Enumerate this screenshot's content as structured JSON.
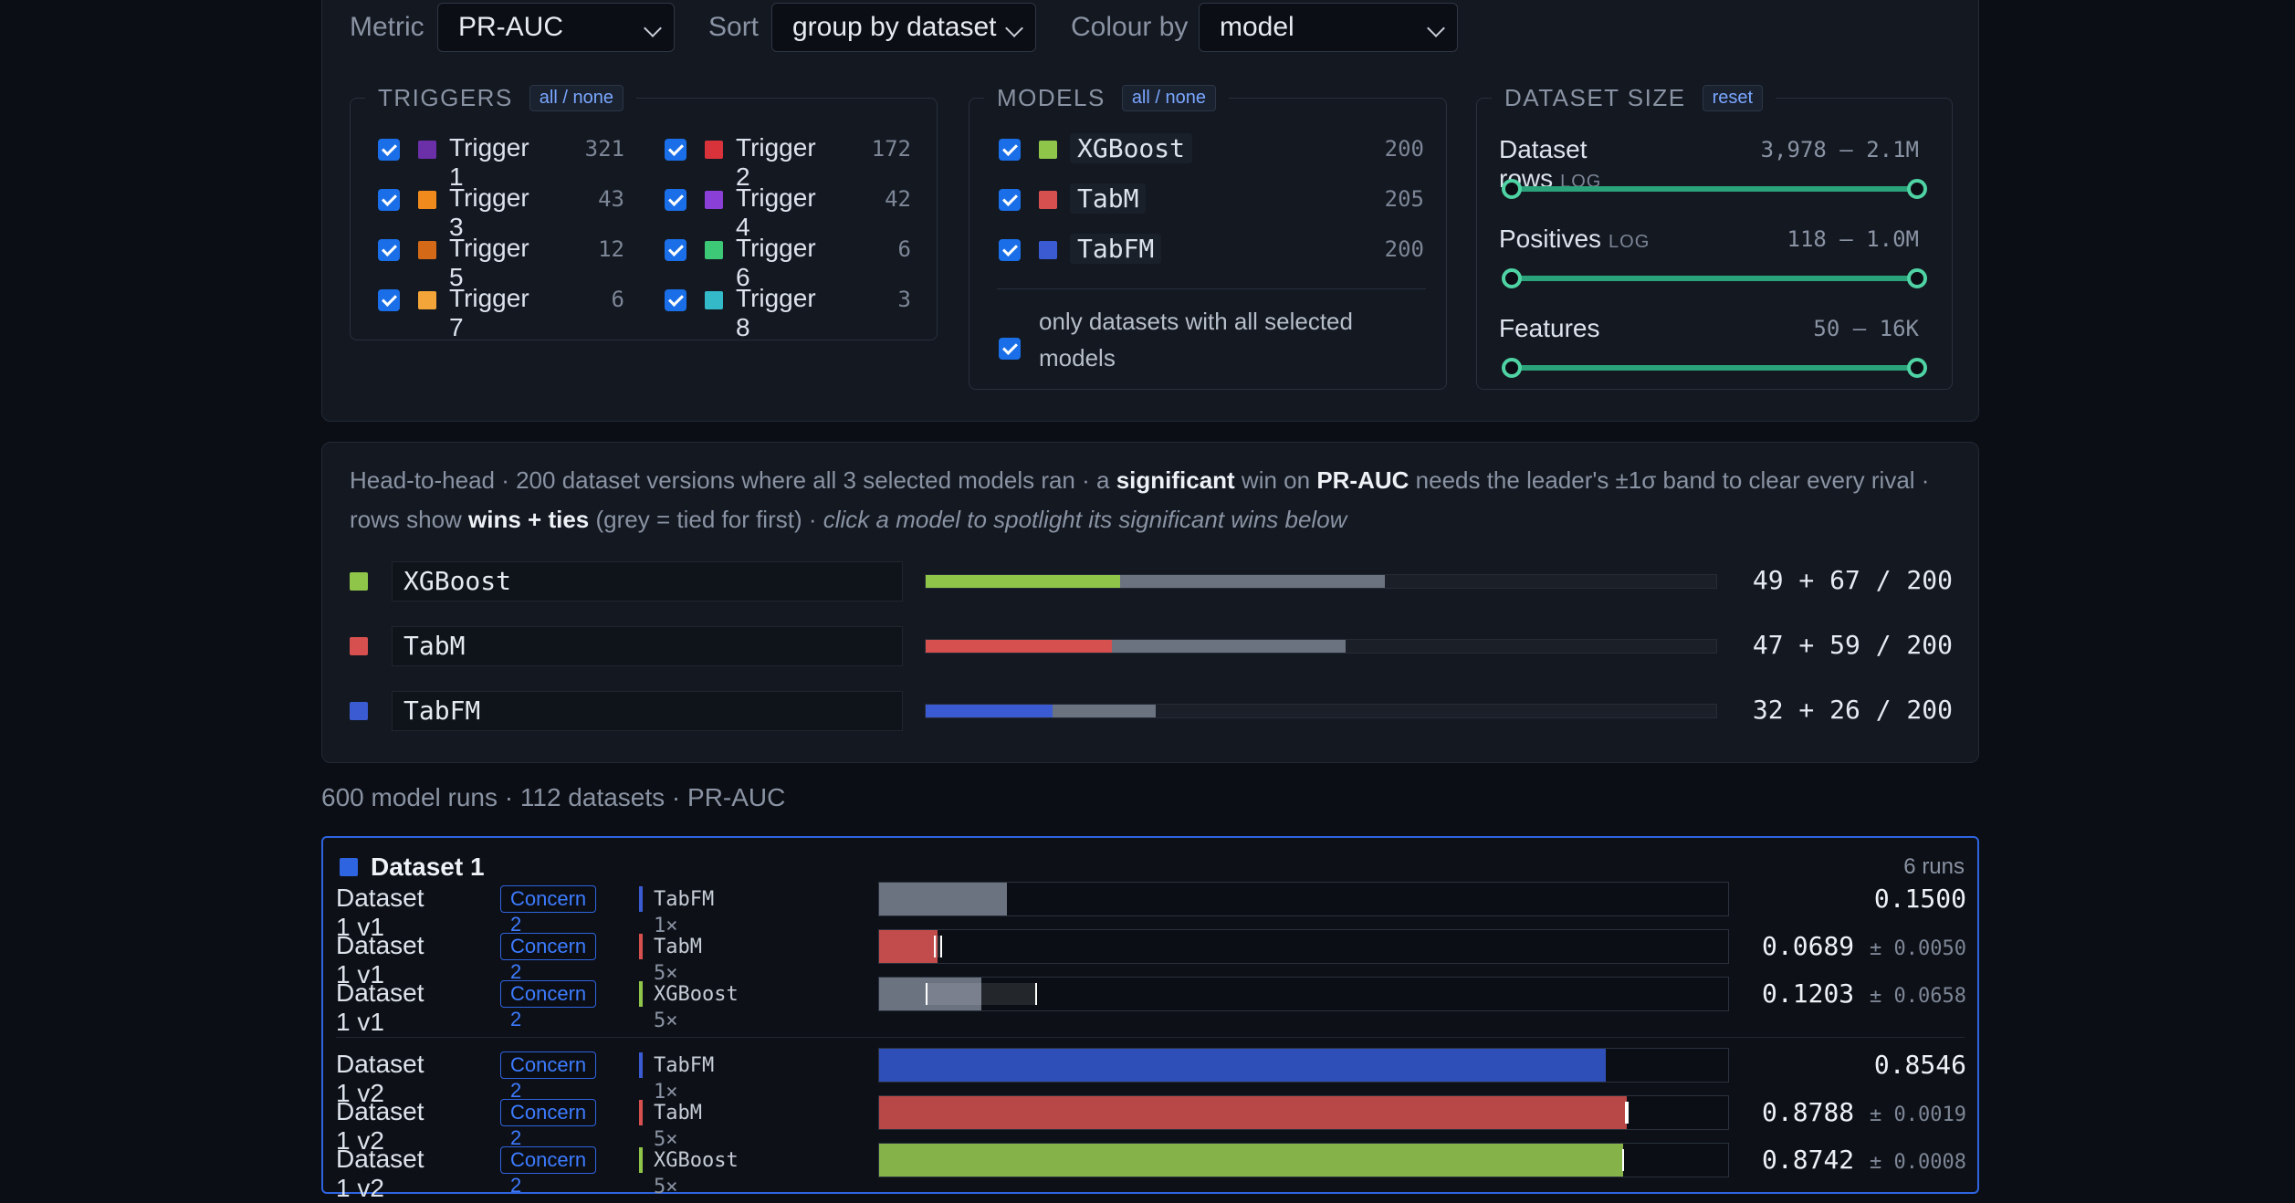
{
  "controls": {
    "metric_label": "Metric",
    "metric_value": "PR-AUC",
    "sort_label": "Sort",
    "sort_value": "group by dataset",
    "colour_label": "Colour by",
    "colour_value": "model"
  },
  "triggers": {
    "title": "TRIGGERS",
    "toggle": "all / none",
    "items": [
      {
        "name": "Trigger 1",
        "count": "321",
        "color": "#6b2fa8"
      },
      {
        "name": "Trigger 2",
        "count": "172",
        "color": "#d8333a"
      },
      {
        "name": "Trigger 3",
        "count": "43",
        "color": "#f08a1c"
      },
      {
        "name": "Trigger 4",
        "count": "42",
        "color": "#8a3fd6"
      },
      {
        "name": "Trigger 5",
        "count": "12",
        "color": "#d46a17"
      },
      {
        "name": "Trigger 6",
        "count": "6",
        "color": "#3dc878"
      },
      {
        "name": "Trigger 7",
        "count": "6",
        "color": "#f4a53a"
      },
      {
        "name": "Trigger 8",
        "count": "3",
        "color": "#34b9c9"
      }
    ]
  },
  "models": {
    "title": "MODELS",
    "toggle": "all / none",
    "items": [
      {
        "name": "XGBoost",
        "count": "200",
        "color": "#8fc64a"
      },
      {
        "name": "TabM",
        "count": "205",
        "color": "#d6504f"
      },
      {
        "name": "TabFM",
        "count": "200",
        "color": "#3a5bd1"
      }
    ],
    "only_all_label": "only datasets with all selected models"
  },
  "dataset_size": {
    "title": "DATASET SIZE",
    "reset": "reset",
    "sliders": [
      {
        "label": "Dataset rows",
        "log": "LOG",
        "range": "3,978 – 2.1M",
        "low": 0,
        "high": 1
      },
      {
        "label": "Positives",
        "log": "LOG",
        "range": "118 – 1.0M",
        "low": 0,
        "high": 1
      },
      {
        "label": "Features",
        "log": "",
        "range": "50 – 16K",
        "low": 0,
        "high": 1
      }
    ]
  },
  "h2h": {
    "desc_1": "Head-to-head · 200 dataset versions where all 3 selected models ran · a ",
    "desc_sig": "significant",
    "desc_2": " win on ",
    "desc_metric": "PR-AUC",
    "desc_3": " needs the leader's ±1σ band to clear every rival · rows show ",
    "desc_wt": "wins + ties",
    "desc_4": " (grey = tied for first) · ",
    "desc_em": "click a model to spotlight its significant wins below",
    "rows": [
      {
        "name": "XGBoost",
        "color": "#8fc64a",
        "wins": 49,
        "ties": 67,
        "total": 200,
        "text": "49 + 67 / 200"
      },
      {
        "name": "TabM",
        "color": "#d6504f",
        "wins": 47,
        "ties": 59,
        "total": 200,
        "text": "47 + 59 / 200"
      },
      {
        "name": "TabFM",
        "color": "#3a5bd1",
        "wins": 32,
        "ties": 26,
        "total": 200,
        "text": "32 + 26 / 200"
      }
    ]
  },
  "summary": "600 model runs · 112 datasets · PR-AUC",
  "dataset_group": {
    "name": "Dataset 1",
    "runs": "6 runs",
    "color": "#2f64e0",
    "rows": [
      {
        "label": "Dataset 1 v1",
        "concern": "Concern 2",
        "model": "TabFM",
        "rep": "1×",
        "mcolor": "#3a5bd1",
        "value": 0.15,
        "sd": 0,
        "value_text": "0.1500",
        "sd_text": "",
        "fill": "#6b7280"
      },
      {
        "label": "Dataset 1 v1",
        "concern": "Concern 2",
        "model": "TabM",
        "rep": "5×",
        "mcolor": "#d6504f",
        "value": 0.0689,
        "sd": 0.005,
        "value_text": "0.0689",
        "sd_text": "± 0.0050",
        "fill": "#c24c4c"
      },
      {
        "label": "Dataset 1 v1",
        "concern": "Concern 2",
        "model": "XGBoost",
        "rep": "5×",
        "mcolor": "#8fc64a",
        "value": 0.1203,
        "sd": 0.0658,
        "value_text": "0.1203",
        "sd_text": "± 0.0658",
        "fill": "#6b7280"
      },
      {
        "label": "Dataset 1 v2",
        "concern": "Concern 2",
        "model": "TabFM",
        "rep": "1×",
        "mcolor": "#3a5bd1",
        "value": 0.8546,
        "sd": 0,
        "value_text": "0.8546",
        "sd_text": "",
        "fill": "#2f4fb8"
      },
      {
        "label": "Dataset 1 v2",
        "concern": "Concern 2",
        "model": "TabM",
        "rep": "5×",
        "mcolor": "#d6504f",
        "value": 0.8788,
        "sd": 0.0019,
        "value_text": "0.8788",
        "sd_text": "± 0.0019",
        "fill": "#b84848"
      },
      {
        "label": "Dataset 1 v2",
        "concern": "Concern 2",
        "model": "XGBoost",
        "rep": "5×",
        "mcolor": "#8fc64a",
        "value": 0.8742,
        "sd": 0.0008,
        "value_text": "0.8742",
        "sd_text": "± 0.0008",
        "fill": "#86b24a"
      }
    ]
  }
}
